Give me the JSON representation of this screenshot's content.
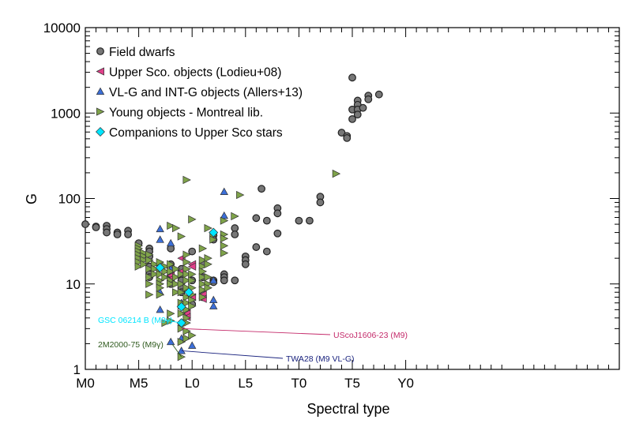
{
  "chart_data": {
    "type": "scatter",
    "xlabel": "Spectral type",
    "ylabel": "G",
    "xlim": [
      0,
      50
    ],
    "ylim": [
      1,
      10000
    ],
    "yscale": "log",
    "x_ticks": [
      {
        "x": 0,
        "label": "M0"
      },
      {
        "x": 5,
        "label": "M5"
      },
      {
        "x": 10,
        "label": "L0"
      },
      {
        "x": 15,
        "label": "L5"
      },
      {
        "x": 20,
        "label": "T0"
      },
      {
        "x": 25,
        "label": "T5"
      },
      {
        "x": 30,
        "label": "Y0"
      }
    ],
    "y_ticks": [
      {
        "y": 1,
        "label": "1"
      },
      {
        "y": 10,
        "label": "10"
      },
      {
        "y": 100,
        "label": "100"
      },
      {
        "y": 1000,
        "label": "1000"
      },
      {
        "y": 10000,
        "label": "10000"
      }
    ],
    "legend_position": "top-left",
    "series": [
      {
        "name": "Field dwarfs",
        "marker": "circle",
        "color": "#777777",
        "points": [
          [
            0,
            50
          ],
          [
            1,
            47
          ],
          [
            1,
            46
          ],
          [
            2,
            48
          ],
          [
            2,
            44
          ],
          [
            2,
            40
          ],
          [
            3,
            40
          ],
          [
            3,
            38
          ],
          [
            4,
            42
          ],
          [
            4,
            38
          ],
          [
            5,
            30
          ],
          [
            6,
            26
          ],
          [
            6,
            24
          ],
          [
            6,
            21
          ],
          [
            6,
            16
          ],
          [
            6,
            13
          ],
          [
            6,
            12
          ],
          [
            8,
            26
          ],
          [
            8,
            17
          ],
          [
            8,
            12
          ],
          [
            8,
            11
          ],
          [
            8,
            10
          ],
          [
            9,
            15
          ],
          [
            9,
            13
          ],
          [
            9,
            11
          ],
          [
            9,
            9
          ],
          [
            9,
            8
          ],
          [
            9,
            5.5
          ],
          [
            10,
            24
          ],
          [
            10,
            11
          ],
          [
            10,
            5.8
          ],
          [
            11,
            17
          ],
          [
            11,
            12
          ],
          [
            11,
            8
          ],
          [
            11,
            7
          ],
          [
            12,
            11
          ],
          [
            12,
            10.5
          ],
          [
            12,
            37
          ],
          [
            12,
            33
          ],
          [
            13,
            13
          ],
          [
            13,
            12
          ],
          [
            13,
            11
          ],
          [
            14,
            45
          ],
          [
            14,
            38
          ],
          [
            14,
            11
          ],
          [
            15,
            21
          ],
          [
            15,
            19
          ],
          [
            15,
            17
          ],
          [
            16,
            59
          ],
          [
            16,
            27
          ],
          [
            16.5,
            130
          ],
          [
            17,
            55
          ],
          [
            17,
            24
          ],
          [
            18,
            77
          ],
          [
            18,
            67
          ],
          [
            18,
            39
          ],
          [
            20,
            55
          ],
          [
            21,
            55
          ],
          [
            22,
            105
          ],
          [
            22,
            90
          ],
          [
            24,
            590
          ],
          [
            24.5,
            540
          ],
          [
            24.5,
            510
          ],
          [
            25,
            2600
          ],
          [
            25,
            1100
          ],
          [
            25,
            850
          ],
          [
            25.5,
            1400
          ],
          [
            25.5,
            1250
          ],
          [
            25.5,
            1100
          ],
          [
            25.5,
            960
          ],
          [
            26,
            1150
          ],
          [
            26.5,
            1600
          ],
          [
            26.5,
            1450
          ],
          [
            27.5,
            1650
          ]
        ]
      },
      {
        "name": "Upper Sco. objects (Lodieu+08)",
        "marker": "triangle-left",
        "color": "#e0408a",
        "points": [
          [
            8,
            12.5
          ],
          [
            8,
            11.5
          ],
          [
            9,
            20
          ],
          [
            9,
            14
          ],
          [
            9,
            5.5
          ],
          [
            9.5,
            4.5
          ],
          [
            9.5,
            4.1
          ],
          [
            10,
            17
          ],
          [
            10,
            16
          ],
          [
            10,
            7
          ],
          [
            11,
            7.5
          ],
          [
            11,
            6.7
          ]
        ]
      },
      {
        "name": "VL-G and INT-G objects (Allers+13)",
        "marker": "triangle-up",
        "color": "#3c6fd8",
        "points": [
          [
            7,
            44
          ],
          [
            7,
            33
          ],
          [
            7,
            8
          ],
          [
            7,
            5
          ],
          [
            8,
            30
          ],
          [
            8,
            15
          ],
          [
            8,
            2.1
          ],
          [
            9,
            6
          ],
          [
            9,
            5.5
          ],
          [
            9,
            3.5
          ],
          [
            9,
            2.3
          ],
          [
            9,
            1.65
          ],
          [
            10,
            1.9
          ],
          [
            12,
            11
          ],
          [
            12,
            6.5
          ],
          [
            12,
            5.5
          ],
          [
            13,
            120
          ],
          [
            13,
            63
          ]
        ]
      },
      {
        "name": "Young objects - Montreal lib.",
        "marker": "triangle-right",
        "color": "#7fa34a",
        "points": [
          [
            5,
            28
          ],
          [
            5,
            26
          ],
          [
            5,
            24
          ],
          [
            5,
            22
          ],
          [
            5,
            20
          ],
          [
            5,
            18
          ],
          [
            5,
            16
          ],
          [
            5.5,
            23
          ],
          [
            5.5,
            21
          ],
          [
            5.5,
            19
          ],
          [
            5.5,
            17
          ],
          [
            6,
            22
          ],
          [
            6,
            19
          ],
          [
            6,
            15
          ],
          [
            6,
            12
          ],
          [
            6,
            10
          ],
          [
            6,
            7.5
          ],
          [
            6.5,
            17
          ],
          [
            6.5,
            15
          ],
          [
            6.5,
            13
          ],
          [
            7,
            18
          ],
          [
            7,
            15
          ],
          [
            7,
            13
          ],
          [
            7,
            11
          ],
          [
            7,
            10
          ],
          [
            7,
            9
          ],
          [
            7,
            7.5
          ],
          [
            7.5,
            16
          ],
          [
            7.5,
            14
          ],
          [
            7.5,
            12
          ],
          [
            7.5,
            3.5
          ],
          [
            8,
            48
          ],
          [
            8,
            17
          ],
          [
            8,
            14
          ],
          [
            8,
            11
          ],
          [
            8,
            10
          ],
          [
            8,
            4.5
          ],
          [
            8,
            3.7
          ],
          [
            8.5,
            45
          ],
          [
            8.5,
            15
          ],
          [
            8.5,
            12
          ],
          [
            8.5,
            10
          ],
          [
            8.5,
            8
          ],
          [
            9,
            36
          ],
          [
            9,
            13
          ],
          [
            9,
            10
          ],
          [
            9,
            8
          ],
          [
            9,
            6
          ],
          [
            9,
            4.5
          ],
          [
            9,
            3
          ],
          [
            9,
            2.1
          ],
          [
            9,
            1.4
          ],
          [
            9.5,
            165
          ],
          [
            9.5,
            22
          ],
          [
            9.5,
            18
          ],
          [
            9.5,
            15
          ],
          [
            9.5,
            13
          ],
          [
            9.5,
            11
          ],
          [
            9.5,
            9
          ],
          [
            9.5,
            7
          ],
          [
            9.5,
            6
          ],
          [
            9.5,
            5
          ],
          [
            9.5,
            4
          ],
          [
            9.5,
            3.5
          ],
          [
            9.5,
            2.8
          ],
          [
            9.5,
            2.3
          ],
          [
            10,
            57
          ],
          [
            10,
            13
          ],
          [
            10,
            11
          ],
          [
            10,
            9
          ],
          [
            10,
            7.5
          ],
          [
            10,
            6.5
          ],
          [
            10,
            5.5
          ],
          [
            10,
            2.5
          ],
          [
            11,
            26
          ],
          [
            11,
            19
          ],
          [
            11,
            16
          ],
          [
            11,
            14
          ],
          [
            11,
            12
          ],
          [
            11,
            10
          ],
          [
            11,
            8.5
          ],
          [
            11,
            7
          ],
          [
            11.5,
            45
          ],
          [
            11.5,
            20
          ],
          [
            11.5,
            17
          ],
          [
            11.5,
            12
          ],
          [
            11.5,
            10
          ],
          [
            11.5,
            9
          ],
          [
            12,
            37
          ],
          [
            12,
            33
          ],
          [
            13,
            55
          ],
          [
            13,
            38
          ],
          [
            13,
            34
          ],
          [
            13,
            28
          ],
          [
            13,
            23
          ],
          [
            14,
            62
          ],
          [
            14.5,
            110
          ],
          [
            23.5,
            195
          ]
        ]
      },
      {
        "name": "Companions to Upper Sco stars",
        "marker": "diamond",
        "color": "#00e5ff",
        "points": [
          [
            7,
            15.5
          ],
          [
            9,
            5.4
          ],
          [
            9,
            3.5
          ],
          [
            9.7,
            8
          ],
          [
            12,
            40
          ]
        ]
      }
    ],
    "annotations": [
      {
        "label": "GSC 06214 B (M9γ)",
        "color": "#00e5ff",
        "target": [
          9,
          3.5
        ]
      },
      {
        "label": "UScoJ1606-23 (M9)",
        "color": "#c42a6a",
        "target": [
          9,
          3
        ]
      },
      {
        "label": "2M2000-75 (M9γ)",
        "color": "#2f5a1e",
        "target": [
          9,
          1.4
        ]
      },
      {
        "label": "TWA28 (M9 VL-G)",
        "color": "#1a237e",
        "target": [
          9,
          1.65
        ]
      }
    ]
  }
}
